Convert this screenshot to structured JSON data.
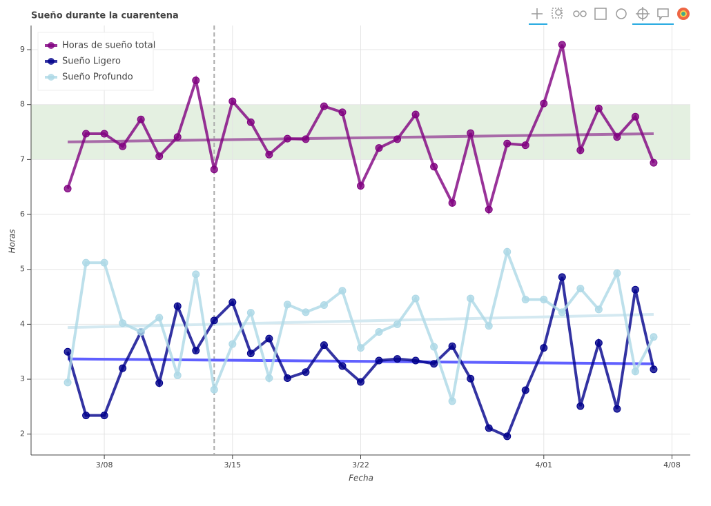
{
  "chart_data": {
    "type": "line",
    "title": "Sueño durante la cuarentena",
    "x_label": "Fecha",
    "y_label": "Horas",
    "x": [
      "3/06",
      "3/07",
      "3/08",
      "3/09",
      "3/10",
      "3/11",
      "3/12",
      "3/13",
      "3/14",
      "3/15",
      "3/16",
      "3/17",
      "3/18",
      "3/19",
      "3/20",
      "3/21",
      "3/22",
      "3/23",
      "3/24",
      "3/25",
      "3/26",
      "3/27",
      "3/28",
      "3/29",
      "3/30",
      "3/31",
      "4/01",
      "4/02",
      "4/03",
      "4/04",
      "4/05",
      "4/06",
      "4/07"
    ],
    "series": [
      {
        "name": "Horas de sueño total",
        "color": "#800080",
        "values": [
          6.47,
          7.47,
          7.47,
          7.24,
          7.73,
          7.06,
          7.41,
          8.44,
          6.82,
          8.06,
          7.68,
          7.09,
          7.38,
          7.37,
          7.97,
          7.86,
          6.52,
          7.21,
          7.37,
          7.82,
          6.87,
          6.21,
          7.48,
          6.09,
          7.29,
          7.26,
          8.02,
          9.09,
          7.17,
          7.93,
          7.41,
          7.78,
          6.94
        ]
      },
      {
        "name": "Sueño Ligero",
        "color": "#00008b",
        "values": [
          3.5,
          2.34,
          2.34,
          3.2,
          3.86,
          2.93,
          4.33,
          3.52,
          4.07,
          4.4,
          3.47,
          3.74,
          3.02,
          3.13,
          3.62,
          3.24,
          2.95,
          3.34,
          3.37,
          3.34,
          3.28,
          3.6,
          3.01,
          2.11,
          1.96,
          2.8,
          3.57,
          4.86,
          2.51,
          3.66,
          2.46,
          4.63,
          3.18
        ]
      },
      {
        "name": "Sueño Profundo",
        "color": "#add8e6",
        "values": [
          2.94,
          5.12,
          5.12,
          4.02,
          3.86,
          4.12,
          3.07,
          4.91,
          2.81,
          3.64,
          4.21,
          3.02,
          4.36,
          4.22,
          4.35,
          4.61,
          3.57,
          3.86,
          4.0,
          4.47,
          3.59,
          2.6,
          4.47,
          3.97,
          5.32,
          4.45,
          4.45,
          4.22,
          4.65,
          4.27,
          4.93,
          3.14,
          3.77
        ]
      }
    ],
    "trend_lines": [
      {
        "color": "#a86aa8",
        "values": [
          7.32,
          7.47
        ]
      },
      {
        "color": "#6060ff",
        "values": [
          3.37,
          3.28
        ]
      },
      {
        "color": "#d4e9f1",
        "values": [
          3.94,
          4.18
        ]
      }
    ],
    "band": [
      7,
      8
    ],
    "band_color": "#e4f0e1",
    "vline": "3/14",
    "xlim": [
      "3/04",
      "4/09"
    ],
    "xticks": [
      "3/08",
      "3/15",
      "3/22",
      "4/01",
      "4/08"
    ],
    "ylim": [
      1.62,
      9.44
    ],
    "yticks": [
      2,
      3,
      4,
      5,
      6,
      7,
      8,
      9
    ],
    "grid": true,
    "legend": "top-left"
  }
}
